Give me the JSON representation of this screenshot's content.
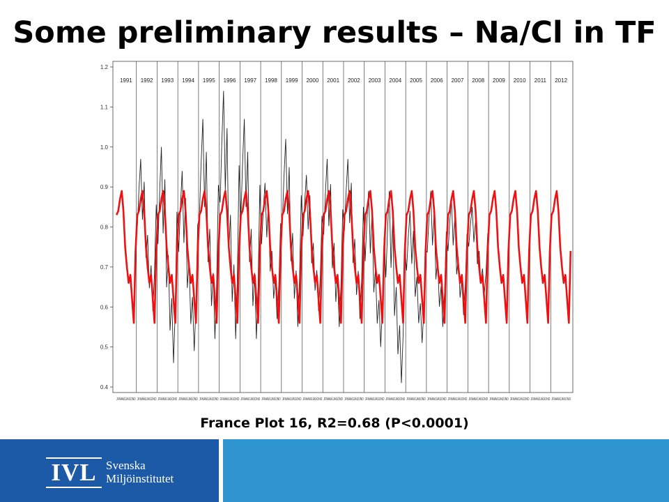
{
  "slide": {
    "title": "Some preliminary results – Na/Cl in TF",
    "caption": "France Plot 16, R2=0.68 (P<0.0001)"
  },
  "logo": {
    "mark": "IVL",
    "line1": "Svenska",
    "line2": "Miljöinstitutet"
  },
  "colors": {
    "footer_left": "#1c5aa8",
    "footer_right": "#2e95d0",
    "observed": "#222222",
    "modelled": "#ee1111"
  },
  "chart_data": {
    "type": "line",
    "title": "",
    "xlabel": "",
    "ylabel": "",
    "ylim": [
      0.4,
      1.2
    ],
    "yticks": [
      "0.4",
      "0.5",
      "0.6",
      "0.7",
      "0.8",
      "0.9",
      "1.0",
      "1.1",
      "1.2"
    ],
    "grid": false,
    "years": [
      "1991",
      "1992",
      "1993",
      "1994",
      "1995",
      "1996",
      "1997",
      "1998",
      "1999",
      "2000",
      "2001",
      "2002",
      "2003",
      "2004",
      "2005",
      "2006",
      "2007",
      "2008",
      "2009",
      "2010",
      "2011",
      "2012"
    ],
    "month_tick_labels": "JFMAMJJASOND",
    "series": [
      {
        "color": "#ee1111",
        "pattern_per_year": [
          0.83,
          0.84,
          0.87,
          0.89,
          0.84,
          0.75,
          0.7,
          0.66,
          0.68,
          0.62,
          0.56,
          0.74
        ],
        "note": "repeats each year 1991-2012"
      },
      {
        "color": "#222222",
        "peaks_by_year": {
          "1991": null,
          "1992": 0.97,
          "1993": 1.0,
          "1994": 0.94,
          "1995": 1.07,
          "1996": 1.14,
          "1997": 1.07,
          "1998": 0.91,
          "1999": 1.02,
          "2000": 0.93,
          "2001": 0.97,
          "2002": 0.97,
          "2003": 0.89,
          "2004": 0.89,
          "2005": 0.84,
          "2006": 0.89,
          "2007": 0.87,
          "2008": 0.85
        },
        "troughs_by_year": {
          "1992": 0.59,
          "1993": 0.46,
          "1994": 0.49,
          "1995": 0.52,
          "1996": 0.52,
          "1997": 0.52,
          "1998": 0.57,
          "1999": 0.55,
          "2000": 0.59,
          "2001": 0.55,
          "2002": 0.57,
          "2003": 0.5,
          "2004": 0.41,
          "2005": 0.51,
          "2006": 0.55,
          "2007": 0.58,
          "2008": 0.63
        }
      }
    ]
  }
}
